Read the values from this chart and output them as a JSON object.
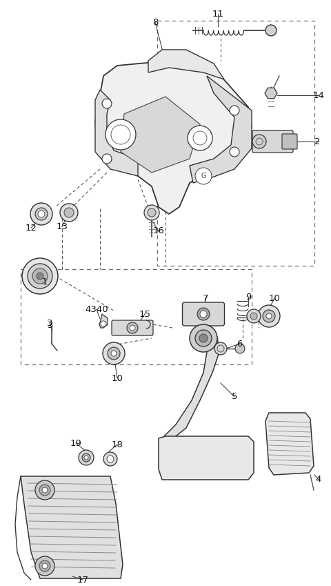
{
  "bg_color": "#ffffff",
  "fig_width": 4.8,
  "fig_height": 8.49,
  "dpi": 100,
  "line_color": "#333333",
  "label_color": "#111111",
  "label_fontsize": 9.5
}
